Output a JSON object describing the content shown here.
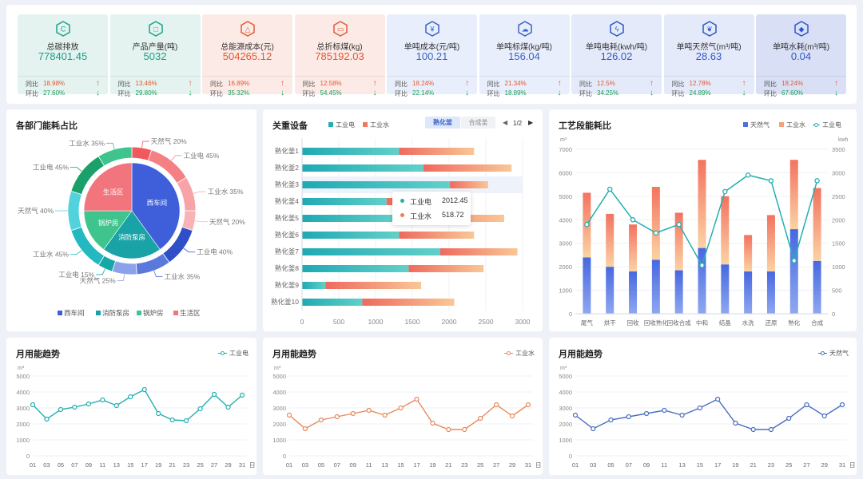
{
  "kpis": [
    {
      "title": "总碳排放",
      "value": "778401.45",
      "yoy": "18.98%",
      "mom": "27.60%",
      "icon": "carbon-icon",
      "icon_glyph": "C",
      "bg": "#e4f3ef",
      "value_color": "#1c9c88",
      "icon_color": "#1aa58c"
    },
    {
      "title": "产品产量(吨)",
      "value": "5032",
      "yoy": "13.46%",
      "mom": "29.80%",
      "icon": "cube-icon",
      "icon_glyph": "□",
      "bg": "#e4f3ef",
      "value_color": "#1c9c88",
      "icon_color": "#1aa58c"
    },
    {
      "title": "总能源成本(元)",
      "value": "504265.12",
      "yoy": "16.89%",
      "mom": "35.32%",
      "icon": "recycle-cost-icon",
      "icon_glyph": "△",
      "bg": "#fbeae6",
      "value_color": "#e8562f",
      "icon_color": "#e35b3a"
    },
    {
      "title": "总折标煤(kg)",
      "value": "785192.03",
      "yoy": "12.58%",
      "mom": "54.45%",
      "icon": "coal-cart-icon",
      "icon_glyph": "▭",
      "bg": "#fbeae6",
      "value_color": "#e8562f",
      "icon_color": "#e35b3a"
    },
    {
      "title": "单吨成本(元/吨)",
      "value": "100.21",
      "yoy": "18.24%",
      "mom": "22.14%",
      "icon": "yen-icon",
      "icon_glyph": "¥",
      "bg": "#e8eefb",
      "value_color": "#3a62c9",
      "icon_color": "#3a62c9"
    },
    {
      "title": "单吨标煤(kg/吨)",
      "value": "156.04",
      "yoy": "21.34%",
      "mom": "18.89%",
      "icon": "cloud-icon",
      "icon_glyph": "☁",
      "bg": "#e8eefb",
      "value_color": "#3a62c9",
      "icon_color": "#3a62c9"
    },
    {
      "title": "单吨电耗(kwh/吨)",
      "value": "126.02",
      "yoy": "12.5%",
      "mom": "34.25%",
      "icon": "lightning-icon",
      "icon_glyph": "ϟ",
      "bg": "#e5eafa",
      "value_color": "#2f57c8",
      "icon_color": "#2f57c8"
    },
    {
      "title": "单吨天然气(m³/吨)",
      "value": "28.63",
      "yoy": "12.78%",
      "mom": "24.89%",
      "icon": "leaf-icon",
      "icon_glyph": "❦",
      "bg": "#e5eafa",
      "value_color": "#2f57c8",
      "icon_color": "#2f57c8"
    },
    {
      "title": "单吨水耗(m³/吨)",
      "value": "0.04",
      "yoy": "18.24%",
      "mom": "67.60%",
      "icon": "water-drop-icon",
      "icon_glyph": "◆",
      "bg": "#d9e0f6",
      "value_color": "#2f57c8",
      "icon_color": "#2f57c8"
    }
  ],
  "kpi_labels": {
    "yoy": "同比",
    "mom": "环比",
    "up": "↑",
    "down": "↓"
  },
  "dept": {
    "title": "各部门能耗占比",
    "inner": [
      {
        "name": "西车间",
        "value": 40,
        "color": "#3e5fd9"
      },
      {
        "name": "消防泵房",
        "value": 20,
        "color": "#19a3a7"
      },
      {
        "name": "锅炉房",
        "value": 15,
        "color": "#3fc48d"
      },
      {
        "name": "生活区",
        "value": 25,
        "color": "#f2747c"
      }
    ],
    "outer": [
      {
        "label": "天然气 20%",
        "value": 20,
        "color": "#f1595f"
      },
      {
        "label": "工业电 45%",
        "value": 45,
        "color": "#f47f84"
      },
      {
        "label": "工业水 35%",
        "value": 35,
        "color": "#f8a3a7"
      },
      {
        "label": "天然气 20%",
        "value": 20,
        "color": "#f9b3b6"
      },
      {
        "label": "工业电 40%",
        "value": 40,
        "color": "#2f4fc9"
      },
      {
        "label": "工业水 35%",
        "value": 35,
        "color": "#5a79dd"
      },
      {
        "label": "天然气 25%",
        "value": 25,
        "color": "#8ba1ea"
      },
      {
        "label": "工业电 15%",
        "value": 15,
        "color": "#14a9a6"
      },
      {
        "label": "工业水 45%",
        "value": 45,
        "color": "#24b8c0"
      },
      {
        "label": "天然气 40%",
        "value": 40,
        "color": "#52d2dc"
      },
      {
        "label": "工业电 45%",
        "value": 45,
        "color": "#1aa068"
      },
      {
        "label": "工业水 35%",
        "value": 35,
        "color": "#3ec48c"
      }
    ],
    "legend": [
      "西车间",
      "消防泵房",
      "锅炉房",
      "生活区"
    ]
  },
  "equip": {
    "title": "关重设备",
    "legend": [
      "工业电",
      "工业水"
    ],
    "tabs": [
      "熟化釜",
      "合成釜"
    ],
    "page": "1/2",
    "prev": "◀",
    "next": "▶",
    "tooltip": {
      "elec_label": "工业电",
      "elec_value": "2012.45",
      "water_label": "工业水",
      "water_value": "518.72"
    }
  },
  "process": {
    "title": "工艺段能耗比",
    "legend": [
      "天然气",
      "工业水",
      "工业电"
    ],
    "left_unit": "m³",
    "right_unit": "kwh"
  },
  "monthly": [
    {
      "title": "月用能趋势",
      "legend": "工业电",
      "unit": "m³",
      "color": "#26aeb0"
    },
    {
      "title": "月用能趋势",
      "legend": "工业水",
      "unit": "m³",
      "color": "#e58b60"
    },
    {
      "title": "月用能趋势",
      "legend": "天然气",
      "unit": "m³",
      "color": "#4a6fbe"
    }
  ],
  "chart_data": [
    {
      "type": "bar",
      "orientation": "horizontal",
      "stacked": true,
      "categories": [
        "熟化釜1",
        "熟化釜2",
        "熟化釜3",
        "熟化釜4",
        "熟化釜5",
        "熟化釜6",
        "熟化釜7",
        "熟化釜8",
        "熟化釜9",
        "熟化釜10"
      ],
      "series": [
        {
          "name": "工业电",
          "values": [
            1320,
            1650,
            2012.45,
            1150,
            1300,
            1320,
            1880,
            1450,
            320,
            820
          ]
        },
        {
          "name": "工业水",
          "values": [
            1020,
            1200,
            518.72,
            700,
            1450,
            1020,
            1050,
            1020,
            1300,
            1250
          ]
        }
      ],
      "xlim": [
        0,
        3000
      ],
      "xticks": [
        0,
        500,
        1000,
        1500,
        2000,
        2500,
        3000
      ]
    },
    {
      "type": "bar",
      "stacked": true,
      "categories": [
        "尾气",
        "烘干",
        "回收",
        "回收熟化",
        "回收合成",
        "中和",
        "结晶",
        "水洗",
        "还原",
        "熟化",
        "合成"
      ],
      "series": [
        {
          "name": "天然气",
          "values": [
            2400,
            2000,
            1800,
            2300,
            1850,
            2800,
            2100,
            1800,
            1800,
            3600,
            2250
          ]
        },
        {
          "name": "工业水",
          "values": [
            2750,
            2250,
            2000,
            3100,
            2450,
            3750,
            2900,
            1550,
            2400,
            2950,
            3100
          ]
        },
        {
          "name": "工业电",
          "axis": "right",
          "values": [
            1900,
            2650,
            2000,
            1720,
            1900,
            1030,
            2600,
            2950,
            2830,
            1130,
            2830
          ]
        }
      ],
      "ylim": [
        0,
        7000
      ],
      "yticks": [
        0,
        1000,
        2000,
        3000,
        4000,
        5000,
        6000,
        7000
      ],
      "y2lim": [
        0,
        3500
      ],
      "y2ticks": [
        0,
        500,
        1000,
        1500,
        2000,
        2500,
        3000,
        3500
      ]
    },
    {
      "type": "line",
      "series": [
        {
          "name": "工业电",
          "values": [
            3200,
            2300,
            2900,
            3050,
            3250,
            3500,
            3150,
            3700,
            4150,
            2650,
            2250,
            2200,
            2950,
            3850,
            3050,
            3800
          ]
        }
      ],
      "x": [
        "01",
        "03",
        "05",
        "07",
        "09",
        "11",
        "13",
        "15",
        "17",
        "19",
        "21",
        "23",
        "25",
        "27",
        "29",
        "31"
      ],
      "x_unit": "日",
      "ylim": [
        0,
        5000
      ],
      "yticks": [
        0,
        1000,
        2000,
        3000,
        4000,
        5000
      ]
    },
    {
      "type": "line",
      "series": [
        {
          "name": "工业水",
          "values": [
            2550,
            1700,
            2250,
            2450,
            2650,
            2850,
            2550,
            3000,
            3550,
            2050,
            1650,
            1650,
            2350,
            3200,
            2500,
            3200
          ]
        }
      ],
      "x": [
        "01",
        "03",
        "05",
        "07",
        "09",
        "11",
        "13",
        "15",
        "17",
        "19",
        "21",
        "23",
        "25",
        "27",
        "29",
        "31"
      ],
      "x_unit": "日",
      "ylim": [
        0,
        5000
      ],
      "yticks": [
        0,
        1000,
        2000,
        3000,
        4000,
        5000
      ]
    },
    {
      "type": "line",
      "series": [
        {
          "name": "天然气",
          "values": [
            2550,
            1700,
            2250,
            2450,
            2650,
            2850,
            2550,
            3000,
            3550,
            2050,
            1650,
            1650,
            2350,
            3200,
            2500,
            3200
          ]
        }
      ],
      "x": [
        "01",
        "03",
        "05",
        "07",
        "09",
        "11",
        "13",
        "15",
        "17",
        "19",
        "21",
        "23",
        "25",
        "27",
        "29",
        "31"
      ],
      "x_unit": "日",
      "ylim": [
        0,
        5000
      ],
      "yticks": [
        0,
        1000,
        2000,
        3000,
        4000,
        5000
      ]
    }
  ]
}
